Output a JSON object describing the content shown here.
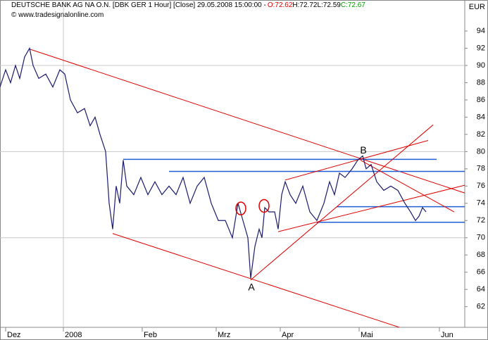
{
  "chart_data": {
    "type": "line",
    "title": "DEUTSCHE BANK AG NA O.N. [DBK GER  1 Hour] [Close] 29.05.2008 15:00:00 -",
    "ohlc": [
      {
        "text": "O:72.62",
        "color": "#e00000"
      },
      {
        "text": "H:72.72",
        "color": "#000000"
      },
      {
        "text": "L:72.59",
        "color": "#000000"
      },
      {
        "text": "C:72.67",
        "color": "#00a000"
      }
    ],
    "watermark": "© www.tradesignalonline.com",
    "y_axis_label": "EUR",
    "xlim": [
      0,
      660
    ],
    "ylim": [
      59.6,
      97.6
    ],
    "xticks": [
      {
        "value": 8,
        "label": "Dez"
      },
      {
        "value": 90,
        "label": "2008"
      },
      {
        "value": 202,
        "label": "Feb"
      },
      {
        "value": 307,
        "label": "Mrz"
      },
      {
        "value": 398,
        "label": "Apr"
      },
      {
        "value": 510,
        "label": "Mai"
      },
      {
        "value": 624,
        "label": "Jun"
      }
    ],
    "yticks": [
      62,
      64,
      66,
      68,
      70,
      72,
      74,
      76,
      78,
      80,
      82,
      84,
      86,
      88,
      90,
      92,
      94
    ],
    "ygrid": [
      70,
      80,
      90
    ],
    "xgrid": [
      90
    ],
    "x": [
      0,
      8,
      15,
      22,
      28,
      35,
      42,
      47,
      55,
      65,
      75,
      85,
      92,
      100,
      110,
      120,
      128,
      135,
      142,
      150,
      155,
      160,
      165,
      170,
      175,
      180,
      190,
      200,
      210,
      220,
      230,
      240,
      250,
      260,
      270,
      280,
      290,
      300,
      310,
      320,
      330,
      338,
      345,
      352,
      356,
      362,
      368,
      372,
      376,
      382,
      390,
      395,
      400,
      405,
      412,
      420,
      430,
      440,
      450,
      460,
      468,
      475,
      482,
      490,
      500,
      508,
      515,
      520,
      527,
      535,
      545,
      555,
      565,
      575,
      583,
      590,
      595,
      600,
      605
    ],
    "series": [
      {
        "name": "DBK",
        "color": "#1a1a6e",
        "values": [
          87.5,
          89.5,
          88,
          90,
          88.5,
          91,
          92,
          90,
          88.5,
          89,
          87.5,
          89.5,
          89,
          86,
          84.5,
          85,
          83,
          84,
          82,
          80,
          74,
          71,
          76,
          74,
          79,
          76,
          75,
          77,
          75,
          76.5,
          75,
          76,
          75,
          77,
          74,
          76,
          77,
          74,
          72,
          72,
          70,
          74,
          72,
          70,
          65.3,
          69,
          71,
          70,
          73.5,
          73,
          73,
          71,
          75,
          76.5,
          75,
          74,
          76,
          73,
          72,
          74,
          76.5,
          75,
          77.5,
          77,
          78,
          79,
          79.5,
          78,
          78.5,
          76.5,
          75.5,
          76,
          75.5,
          74,
          73,
          72,
          72.5,
          73.5,
          73
        ]
      }
    ],
    "trendlines": [
      {
        "color": "#e00000",
        "x": [
          160,
          612
        ],
        "y": [
          70.49,
          58.4
        ]
      },
      {
        "color": "#e00000",
        "x": [
          42,
          693
        ],
        "y": [
          91.9,
          74.3
        ]
      },
      {
        "color": "#1f5fd6",
        "x": [
          175,
          620
        ],
        "y": [
          79.1,
          79.1
        ]
      },
      {
        "color": "#1f5fd6",
        "x": [
          240,
          660
        ],
        "y": [
          77.7,
          77.7
        ]
      },
      {
        "color": "#1f5fd6",
        "x": [
          478,
          660
        ],
        "y": [
          73.6,
          73.6
        ]
      },
      {
        "color": "#1f5fd6",
        "x": [
          450,
          660
        ],
        "y": [
          71.8,
          71.8
        ]
      },
      {
        "color": "#e00000",
        "x": [
          356,
          615
        ],
        "y": [
          65.1,
          83.1
        ]
      },
      {
        "color": "#e00000",
        "x": [
          395,
          660
        ],
        "y": [
          70.7,
          76.1
        ]
      },
      {
        "color": "#e00000",
        "x": [
          405,
          608
        ],
        "y": [
          76.7,
          81.3
        ]
      },
      {
        "color": "#e00000",
        "x": [
          512,
          645
        ],
        "y": [
          79.0,
          73.0
        ]
      }
    ],
    "circles": [
      {
        "x": 342,
        "y": 73.4
      },
      {
        "x": 375,
        "y": 73.7
      }
    ],
    "annotations": [
      {
        "text": "A",
        "x": 357,
        "y": 64.2
      },
      {
        "text": "B",
        "x": 516,
        "y": 80.1
      }
    ]
  }
}
